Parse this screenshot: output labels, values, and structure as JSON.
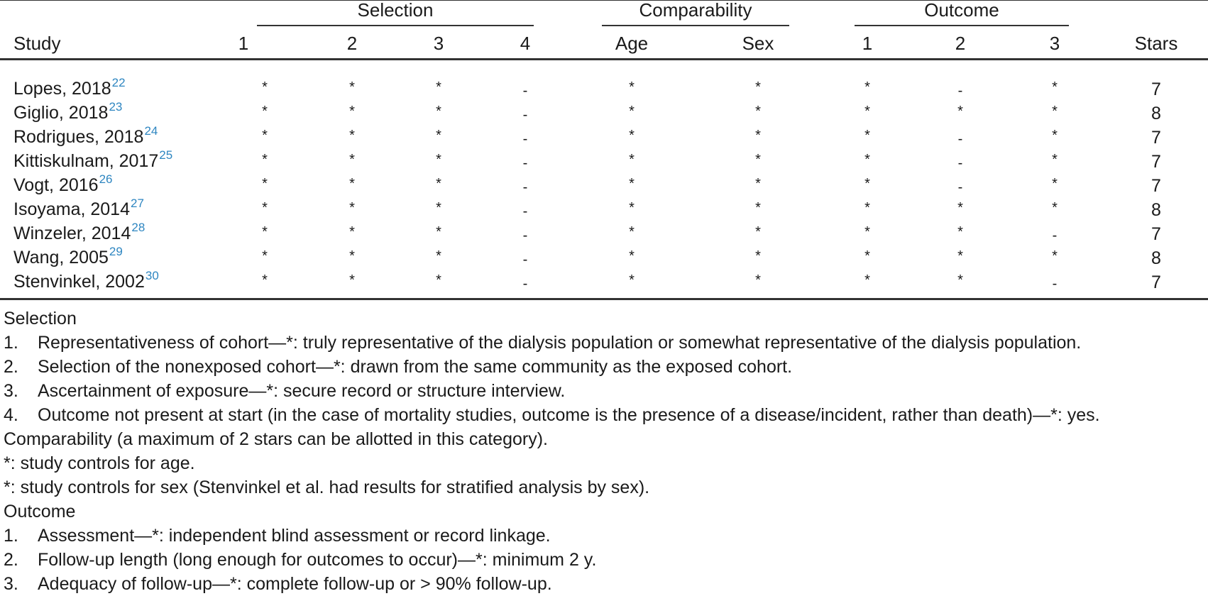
{
  "table": {
    "groups": {
      "selection": "Selection",
      "comparability": "Comparability",
      "outcome": "Outcome"
    },
    "headers": {
      "study": "Study",
      "sel1": "1",
      "sel2": "2",
      "sel3": "3",
      "sel4": "4",
      "age": "Age",
      "sex": "Sex",
      "out1": "1",
      "out2": "2",
      "out3": "3",
      "stars": "Stars"
    },
    "rows": [
      {
        "study": "Lopes, 2018",
        "ref": "22",
        "cells": [
          "*",
          "*",
          "*",
          "-",
          "*",
          "*",
          "*",
          "-",
          "*"
        ],
        "stars": "7"
      },
      {
        "study": "Giglio, 2018",
        "ref": "23",
        "cells": [
          "*",
          "*",
          "*",
          "-",
          "*",
          "*",
          "*",
          "*",
          "*"
        ],
        "stars": "8"
      },
      {
        "study": "Rodrigues, 2018",
        "ref": "24",
        "cells": [
          "*",
          "*",
          "*",
          "-",
          "*",
          "*",
          "*",
          "-",
          "*"
        ],
        "stars": "7"
      },
      {
        "study": "Kittiskulnam, 2017",
        "ref": "25",
        "cells": [
          "*",
          "*",
          "*",
          "-",
          "*",
          "*",
          "*",
          "-",
          "*"
        ],
        "stars": "7"
      },
      {
        "study": "Vogt, 2016",
        "ref": "26",
        "cells": [
          "*",
          "*",
          "*",
          "-",
          "*",
          "*",
          "*",
          "-",
          "*"
        ],
        "stars": "7"
      },
      {
        "study": "Isoyama, 2014",
        "ref": "27",
        "cells": [
          "*",
          "*",
          "*",
          "-",
          "*",
          "*",
          "*",
          "*",
          "*"
        ],
        "stars": "8"
      },
      {
        "study": "Winzeler, 2014",
        "ref": "28",
        "cells": [
          "*",
          "*",
          "*",
          "-",
          "*",
          "*",
          "*",
          "*",
          "-"
        ],
        "stars": "7"
      },
      {
        "study": "Wang, 2005",
        "ref": "29",
        "cells": [
          "*",
          "*",
          "*",
          "-",
          "*",
          "*",
          "*",
          "*",
          "*"
        ],
        "stars": "8"
      },
      {
        "study": "Stenvinkel, 2002",
        "ref": "30",
        "cells": [
          "*",
          "*",
          "*",
          "-",
          "*",
          "*",
          "*",
          "*",
          "-"
        ],
        "stars": "7"
      }
    ]
  },
  "notes": [
    {
      "num": "",
      "text": "Selection"
    },
    {
      "num": "1.",
      "text": "Representativeness of cohort—*: truly representative of the dialysis population or somewhat representative of the dialysis population."
    },
    {
      "num": "2.",
      "text": "Selection of the nonexposed cohort—*: drawn from the same community as the exposed cohort."
    },
    {
      "num": "3.",
      "text": "Ascertainment of exposure—*: secure record or structure interview."
    },
    {
      "num": "4.",
      "text": "Outcome not present at start (in the case of mortality studies, outcome is the presence of a disease/incident, rather than death)—*: yes."
    },
    {
      "num": "",
      "text": "Comparability (a maximum of 2 stars can be allotted in this category)."
    },
    {
      "num": "",
      "text": "*: study controls for age."
    },
    {
      "num": "",
      "text": "*: study controls for sex (Stenvinkel et al. had results for stratified analysis by sex)."
    },
    {
      "num": "",
      "text": "Outcome"
    },
    {
      "num": "1.",
      "text": "Assessment—*: independent blind assessment or record linkage."
    },
    {
      "num": "2.",
      "text": "Follow-up length (long enough for outcomes to occur)—*: minimum 2 y."
    },
    {
      "num": "3.",
      "text": "Adequacy of follow-up—*: complete follow-up or > 90% follow-up."
    }
  ]
}
